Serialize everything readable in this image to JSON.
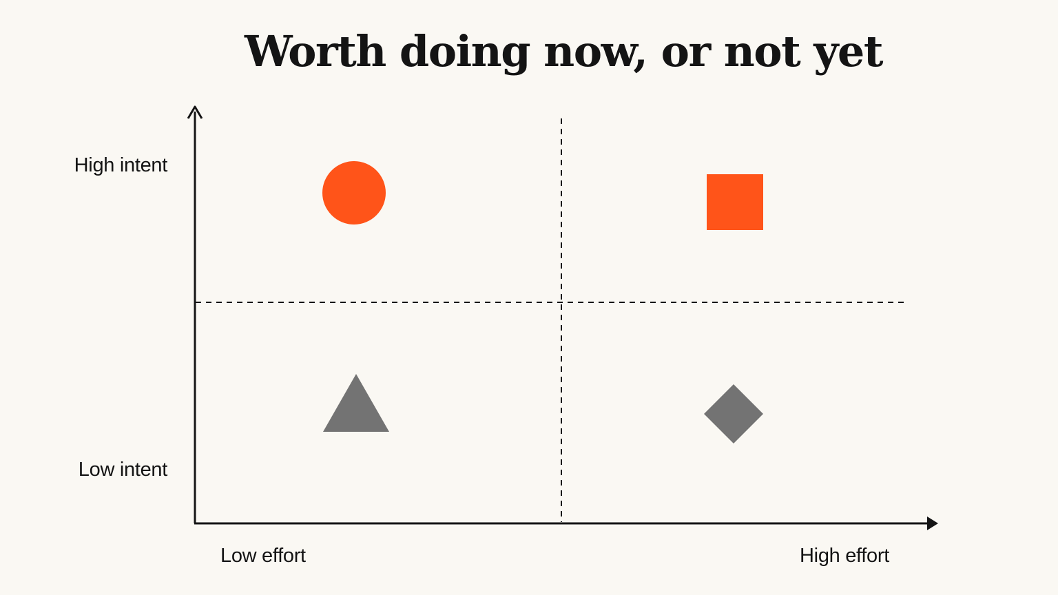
{
  "title": "Worth doing now, or not yet",
  "axes": {
    "y_high_label": "High intent",
    "y_low_label": "Low intent",
    "x_low_label": "Low effort",
    "x_high_label": "High effort"
  },
  "quadrants": [
    {
      "position": "top-left",
      "shape": "circle",
      "color": "#ff5419"
    },
    {
      "position": "top-right",
      "shape": "square",
      "color": "#ff5419"
    },
    {
      "position": "bottom-left",
      "shape": "triangle",
      "color": "#737373"
    },
    {
      "position": "bottom-right",
      "shape": "diamond",
      "color": "#737373"
    }
  ],
  "colors": {
    "background": "#faf8f3",
    "ink": "#141414",
    "accent": "#ff5419",
    "muted": "#737373"
  }
}
